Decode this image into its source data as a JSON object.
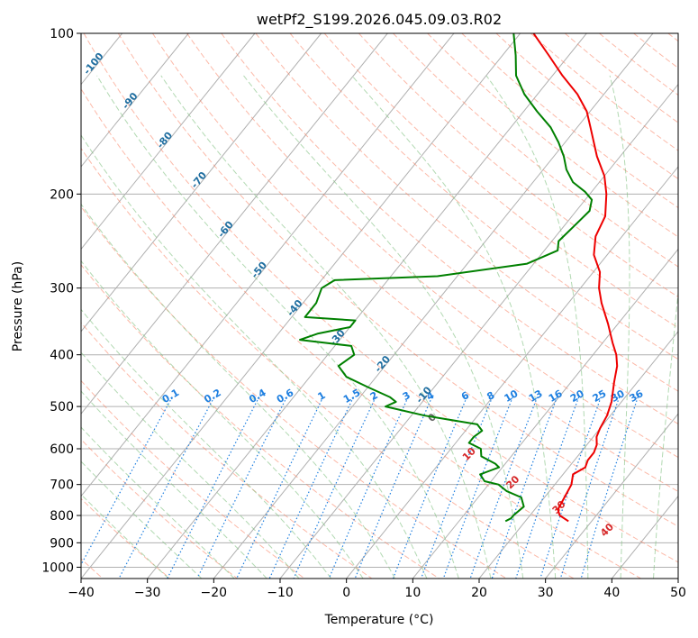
{
  "chart_data": {
    "type": "skewt",
    "title": "wetPf2_S199.2026.045.09.03.R02",
    "xlabel": "Temperature (°C)",
    "ylabel": "Pressure (hPa)",
    "xlim": [
      -40,
      50
    ],
    "ylim": [
      1050,
      100
    ],
    "x_ticks": [
      -40,
      -30,
      -20,
      -10,
      0,
      10,
      20,
      30,
      40,
      50
    ],
    "y_ticks": [
      100,
      200,
      300,
      400,
      500,
      600,
      700,
      800,
      900,
      1000
    ],
    "grid": true,
    "series": [
      {
        "role": "temperature",
        "color": "#ee0000",
        "points": [
          [
            820,
            26.5
          ],
          [
            800,
            24.5
          ],
          [
            780,
            23.5
          ],
          [
            740,
            23
          ],
          [
            700,
            22.5
          ],
          [
            670,
            21.5
          ],
          [
            650,
            22.5
          ],
          [
            630,
            22
          ],
          [
            610,
            22
          ],
          [
            590,
            21.5
          ],
          [
            570,
            20.5
          ],
          [
            550,
            20
          ],
          [
            520,
            19.5
          ],
          [
            490,
            18.5
          ],
          [
            450,
            16.5
          ],
          [
            420,
            15
          ],
          [
            400,
            13.5
          ],
          [
            380,
            11.5
          ],
          [
            350,
            8.5
          ],
          [
            320,
            5
          ],
          [
            300,
            2.8
          ],
          [
            280,
            1
          ],
          [
            260,
            -2
          ],
          [
            240,
            -4
          ],
          [
            220,
            -5
          ],
          [
            200,
            -7.5
          ],
          [
            185,
            -10
          ],
          [
            170,
            -13.5
          ],
          [
            150,
            -18
          ],
          [
            140,
            -20.5
          ],
          [
            130,
            -24
          ],
          [
            120,
            -28.5
          ],
          [
            110,
            -33
          ],
          [
            100,
            -38
          ]
        ]
      },
      {
        "role": "dewpoint",
        "color": "#008000",
        "points": [
          [
            820,
            17
          ],
          [
            810,
            17.5
          ],
          [
            800,
            17.5
          ],
          [
            770,
            18
          ],
          [
            740,
            16.5
          ],
          [
            720,
            13.5
          ],
          [
            700,
            11.5
          ],
          [
            690,
            9
          ],
          [
            670,
            7.5
          ],
          [
            660,
            8.5
          ],
          [
            650,
            9.5
          ],
          [
            640,
            8.5
          ],
          [
            620,
            5.5
          ],
          [
            600,
            4.5
          ],
          [
            585,
            2
          ],
          [
            570,
            2
          ],
          [
            555,
            2.5
          ],
          [
            540,
            1
          ],
          [
            520,
            -8
          ],
          [
            500,
            -15
          ],
          [
            490,
            -14
          ],
          [
            480,
            -15.5
          ],
          [
            460,
            -20
          ],
          [
            440,
            -24.5
          ],
          [
            420,
            -27
          ],
          [
            400,
            -26
          ],
          [
            385,
            -27.5
          ],
          [
            375,
            -36
          ],
          [
            365,
            -34
          ],
          [
            355,
            -30
          ],
          [
            345,
            -30
          ],
          [
            340,
            -38
          ],
          [
            320,
            -38
          ],
          [
            300,
            -39
          ],
          [
            290,
            -38
          ],
          [
            285,
            -23
          ],
          [
            270,
            -11
          ],
          [
            255,
            -8
          ],
          [
            245,
            -9
          ],
          [
            230,
            -8.5
          ],
          [
            215,
            -8
          ],
          [
            205,
            -9
          ],
          [
            198,
            -11
          ],
          [
            190,
            -14
          ],
          [
            180,
            -16.5
          ],
          [
            170,
            -18.5
          ],
          [
            160,
            -21
          ],
          [
            150,
            -24
          ],
          [
            140,
            -28
          ],
          [
            130,
            -32
          ],
          [
            120,
            -35.5
          ],
          [
            110,
            -38
          ],
          [
            100,
            -41
          ]
        ]
      }
    ],
    "dry_adiabat_labels": [
      "-100",
      "-90",
      "-80",
      "-70",
      "-60",
      "-50",
      "-40",
      "-30",
      "-20",
      "-10"
    ],
    "mixing_ratio_labels": [
      "0.1",
      "0.2",
      "0.4",
      "0.6",
      "1",
      "1.5",
      "2",
      "3",
      "4",
      "6",
      "8",
      "10",
      "13",
      "16",
      "20",
      "25",
      "30",
      "36"
    ],
    "moist_adiabat_labels": [
      "0",
      "10",
      "20",
      "30",
      "40"
    ]
  },
  "colors": {
    "temperature": "#ee0000",
    "dewpoint": "#008000",
    "dry_adiabat": "#fa8060",
    "moist_adiabat": "#7fbf7f",
    "mixing_ratio": "#1e7fe0",
    "dry_label": "#1f6ea0",
    "moist_label": "#d62728",
    "grid": "#b0b0b0"
  }
}
